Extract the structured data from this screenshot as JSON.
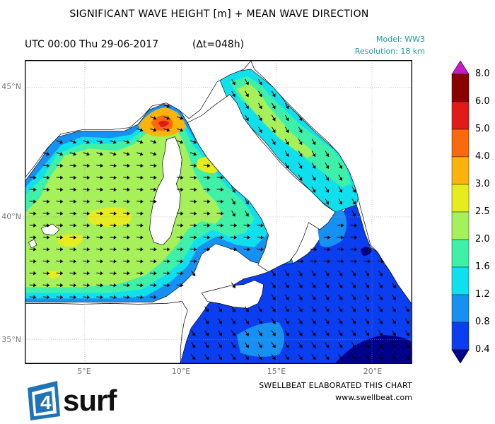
{
  "header": {
    "title": "SIGNIFICANT WAVE HEIGHT [m] + MEAN WAVE DIRECTION",
    "timestamp": "UTC 00:00 Thu 29-06-2017",
    "delta": "(∆t=048h)",
    "model": "Model: WW3",
    "resolution": "Resolution: 18 km"
  },
  "map": {
    "lat_labels": [
      "45°N",
      "40°N",
      "35°N"
    ],
    "lon_labels": [
      "5°E",
      "10°E",
      "15°E",
      "20°E"
    ],
    "lat_range": [
      34.1,
      46.1
    ],
    "lon_range": [
      2.0,
      22.0
    ],
    "grid": true,
    "mean_wave_direction_arrows": true,
    "colors": {
      "land": "#ffffff",
      "coastline": "#000000",
      "grid": "#aaaaaa"
    }
  },
  "colorbar": {
    "labels": [
      "8.0",
      "6.0",
      "5.0",
      "4.0",
      "3.0",
      "2.5",
      "2.0",
      "1.6",
      "1.2",
      "0.8",
      "0.4"
    ],
    "colors": [
      "#c51ac8",
      "#8b0000",
      "#e11a1a",
      "#fa6a0a",
      "#fcb40c",
      "#e6ec1e",
      "#a6f05a",
      "#3ef0a8",
      "#10e0ee",
      "#1690f2",
      "#0a3ef0",
      "#00008a"
    ]
  },
  "footer": {
    "credit": "SWELLBEAT ELABORATED THIS CHART",
    "website": "www.swellbeat.com",
    "logo_text": "4surf",
    "logo_colors": {
      "blue": "#1f74b8",
      "black": "#111111"
    }
  }
}
